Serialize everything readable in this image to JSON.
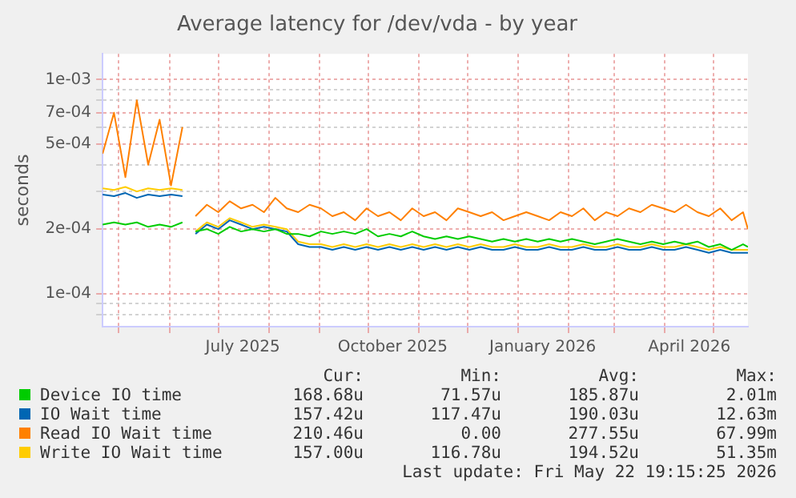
{
  "chart_data": {
    "type": "line",
    "title": "Average latency for /dev/vda - by year",
    "ylabel": "seconds",
    "x": [
      "2025-04-21",
      "2025-04-28",
      "2025-05-05",
      "2025-05-12",
      "2025-05-19",
      "2025-05-26",
      "2025-06-02",
      "2025-06-09",
      "2025-06-13",
      "2025-06-17",
      "2025-06-24",
      "2025-07-01",
      "2025-07-08",
      "2025-07-15",
      "2025-07-22",
      "2025-07-29",
      "2025-08-05",
      "2025-08-12",
      "2025-08-19",
      "2025-08-26",
      "2025-09-02",
      "2025-09-09",
      "2025-09-16",
      "2025-09-23",
      "2025-09-30",
      "2025-10-07",
      "2025-10-14",
      "2025-10-21",
      "2025-10-28",
      "2025-11-04",
      "2025-11-11",
      "2025-11-18",
      "2025-11-25",
      "2025-12-02",
      "2025-12-09",
      "2025-12-16",
      "2025-12-23",
      "2025-12-30",
      "2026-01-06",
      "2026-01-13",
      "2026-01-20",
      "2026-01-27",
      "2026-02-03",
      "2026-02-10",
      "2026-02-17",
      "2026-02-24",
      "2026-03-03",
      "2026-03-10",
      "2026-03-17",
      "2026-03-24",
      "2026-03-31",
      "2026-04-07",
      "2026-04-14",
      "2026-04-21",
      "2026-04-28",
      "2026-05-05",
      "2026-05-12",
      "2026-05-19",
      "2026-05-22"
    ],
    "series": [
      {
        "name": "Device IO time",
        "color": "#00cc00",
        "values": [
          0.00021,
          0.000215,
          0.00021,
          0.000215,
          0.000205,
          0.00021,
          0.000205,
          0.000215,
          null,
          0.000195,
          0.0002,
          0.00019,
          0.000205,
          0.000195,
          0.0002,
          0.000195,
          0.0002,
          0.00019,
          0.00019,
          0.000185,
          0.000195,
          0.00019,
          0.000195,
          0.00019,
          0.0002,
          0.000185,
          0.00019,
          0.000185,
          0.000195,
          0.000185,
          0.00018,
          0.000185,
          0.00018,
          0.000185,
          0.00018,
          0.000175,
          0.00018,
          0.000175,
          0.00018,
          0.000175,
          0.00018,
          0.000175,
          0.00018,
          0.000175,
          0.00017,
          0.000175,
          0.00018,
          0.000175,
          0.00017,
          0.000175,
          0.00017,
          0.000175,
          0.00017,
          0.000175,
          0.000165,
          0.00017,
          0.00016,
          0.00017,
          0.000165
        ]
      },
      {
        "name": "IO Wait time",
        "color": "#0066b3",
        "values": [
          0.00029,
          0.000285,
          0.000295,
          0.00028,
          0.00029,
          0.000285,
          0.00029,
          0.000285,
          null,
          0.00019,
          0.00021,
          0.0002,
          0.00022,
          0.00021,
          0.0002,
          0.000205,
          0.0002,
          0.000195,
          0.00017,
          0.000165,
          0.000165,
          0.00016,
          0.000165,
          0.00016,
          0.000165,
          0.00016,
          0.000165,
          0.00016,
          0.000165,
          0.00016,
          0.000165,
          0.00016,
          0.000165,
          0.00016,
          0.000165,
          0.00016,
          0.00016,
          0.000165,
          0.00016,
          0.00016,
          0.000165,
          0.00016,
          0.00016,
          0.000165,
          0.00016,
          0.00016,
          0.000165,
          0.00016,
          0.00016,
          0.000165,
          0.00016,
          0.00016,
          0.000165,
          0.00016,
          0.000155,
          0.00016,
          0.000155,
          0.000155,
          0.000155
        ]
      },
      {
        "name": "Read IO Wait time",
        "color": "#ff8000",
        "values": [
          0.00045,
          0.0007,
          0.00035,
          0.0008,
          0.0004,
          0.00065,
          0.00032,
          0.0006,
          null,
          0.00023,
          0.00026,
          0.00024,
          0.00027,
          0.00025,
          0.00026,
          0.00024,
          0.00028,
          0.00025,
          0.00024,
          0.00026,
          0.00025,
          0.00023,
          0.00024,
          0.00022,
          0.00025,
          0.00023,
          0.00024,
          0.00022,
          0.00025,
          0.00023,
          0.00024,
          0.00022,
          0.00025,
          0.00024,
          0.00023,
          0.00024,
          0.00022,
          0.00023,
          0.00024,
          0.00023,
          0.00022,
          0.00024,
          0.00023,
          0.00025,
          0.00022,
          0.00024,
          0.00023,
          0.00025,
          0.00024,
          0.00026,
          0.00025,
          0.00024,
          0.00026,
          0.00024,
          0.00023,
          0.00025,
          0.00022,
          0.00024,
          0.0002
        ]
      },
      {
        "name": "Write IO Wait time",
        "color": "#ffcc00",
        "values": [
          0.00031,
          0.000305,
          0.000315,
          0.0003,
          0.00031,
          0.000305,
          0.00031,
          0.000305,
          null,
          0.000195,
          0.000215,
          0.000205,
          0.000225,
          0.000215,
          0.000205,
          0.00021,
          0.000205,
          0.0002,
          0.000175,
          0.00017,
          0.00017,
          0.000165,
          0.00017,
          0.000165,
          0.00017,
          0.000165,
          0.00017,
          0.000165,
          0.00017,
          0.000165,
          0.00017,
          0.000165,
          0.00017,
          0.000165,
          0.00017,
          0.000165,
          0.000165,
          0.00017,
          0.000165,
          0.000165,
          0.00017,
          0.000165,
          0.000165,
          0.00017,
          0.000165,
          0.000165,
          0.00017,
          0.000165,
          0.000165,
          0.00017,
          0.000165,
          0.000165,
          0.00017,
          0.000165,
          0.00016,
          0.000165,
          0.00016,
          0.00016,
          0.00016
        ]
      }
    ],
    "log": "y",
    "ylim": [
      7.1e-05,
      0.00132
    ],
    "yticks": [
      {
        "value": 8e-05,
        "label": null
      },
      {
        "value": 9e-05,
        "label": null
      },
      {
        "value": 0.0001,
        "label": "1e-04"
      },
      {
        "value": 0.0002,
        "label": "2e-04"
      },
      {
        "value": 0.0003,
        "label": null
      },
      {
        "value": 0.0004,
        "label": null
      },
      {
        "value": 0.0005,
        "label": "5e-04"
      },
      {
        "value": 0.0006,
        "label": null
      },
      {
        "value": 0.0007,
        "label": "7e-04"
      },
      {
        "value": 0.0008,
        "label": null
      },
      {
        "value": 0.0009,
        "label": null
      },
      {
        "value": 0.001,
        "label": "1e-03"
      }
    ],
    "xlim": [
      "2025-04-21",
      "2026-05-22"
    ],
    "xticks": [
      {
        "value": "2025-05-01",
        "label": null
      },
      {
        "value": "2025-06-01",
        "label": null
      },
      {
        "value": "2025-07-01",
        "label": null
      },
      {
        "value": "2025-07-16",
        "label": "July 2025"
      },
      {
        "value": "2025-08-01",
        "label": null
      },
      {
        "value": "2025-09-01",
        "label": null
      },
      {
        "value": "2025-10-01",
        "label": null
      },
      {
        "value": "2025-10-16",
        "label": "October 2025"
      },
      {
        "value": "2025-11-01",
        "label": null
      },
      {
        "value": "2025-12-01",
        "label": null
      },
      {
        "value": "2026-01-01",
        "label": null
      },
      {
        "value": "2026-01-16",
        "label": "January 2026"
      },
      {
        "value": "2026-02-01",
        "label": null
      },
      {
        "value": "2026-03-01",
        "label": null
      },
      {
        "value": "2026-04-01",
        "label": null
      },
      {
        "value": "2026-04-16",
        "label": "April 2026"
      },
      {
        "value": "2026-05-01",
        "label": null
      }
    ],
    "grid": true,
    "legend": "bottom",
    "marker": "none",
    "line_style": "solid",
    "annotations": [
      "Cur:",
      "Min:",
      "Avg:",
      "Max:",
      "168.68u",
      "71.57u",
      "185.87u",
      "2.01m",
      "157.42u",
      "117.47u",
      "190.03u",
      "12.63m",
      "210.46u",
      "0.00",
      "277.55u",
      "67.99m",
      "157.00u",
      "116.78u",
      "194.52u",
      "51.35m",
      "Last update: Fri May 22 19:15:25 2026"
    ]
  }
}
